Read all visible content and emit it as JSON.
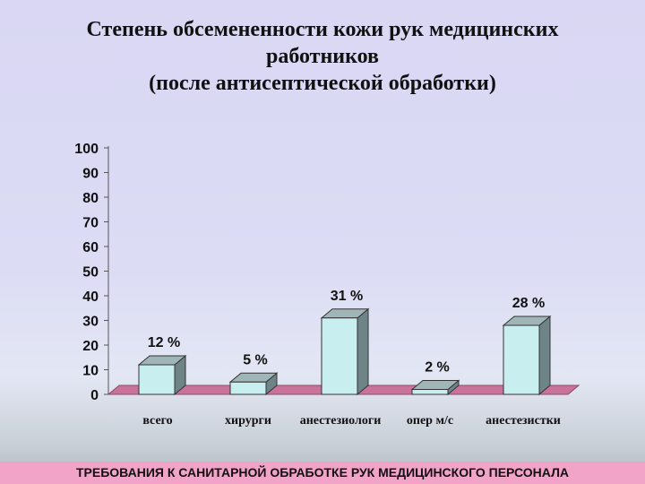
{
  "slide": {
    "title_lines": [
      "Степень обсемененности кожи рук медицинских",
      "работников",
      "(после антисептической обработки)"
    ],
    "footer": "ТРЕБОВАНИЯ К САНИТАРНОЙ ОБРАБОТКЕ РУК МЕДИЦИНСКОГО ПЕРСОНАЛА"
  },
  "chart_data": {
    "type": "bar",
    "style": "3d",
    "categories": [
      "всего",
      "хирурги",
      "анестезиологи",
      "опер м/с",
      "анестезистки"
    ],
    "values": [
      12,
      5,
      31,
      2,
      28
    ],
    "value_labels": [
      "12 %",
      "5 %",
      "31 %",
      "2 %",
      "28 %"
    ],
    "ylim": [
      0,
      100
    ],
    "yticks": [
      0,
      10,
      20,
      30,
      40,
      50,
      60,
      70,
      80,
      90,
      100
    ],
    "grid": false,
    "legend": "none",
    "colors": {
      "bar_front": "#c9eef0",
      "bar_side": "#6e8487",
      "bar_top": "#9fb5b8",
      "floor": "#c9739a"
    }
  }
}
